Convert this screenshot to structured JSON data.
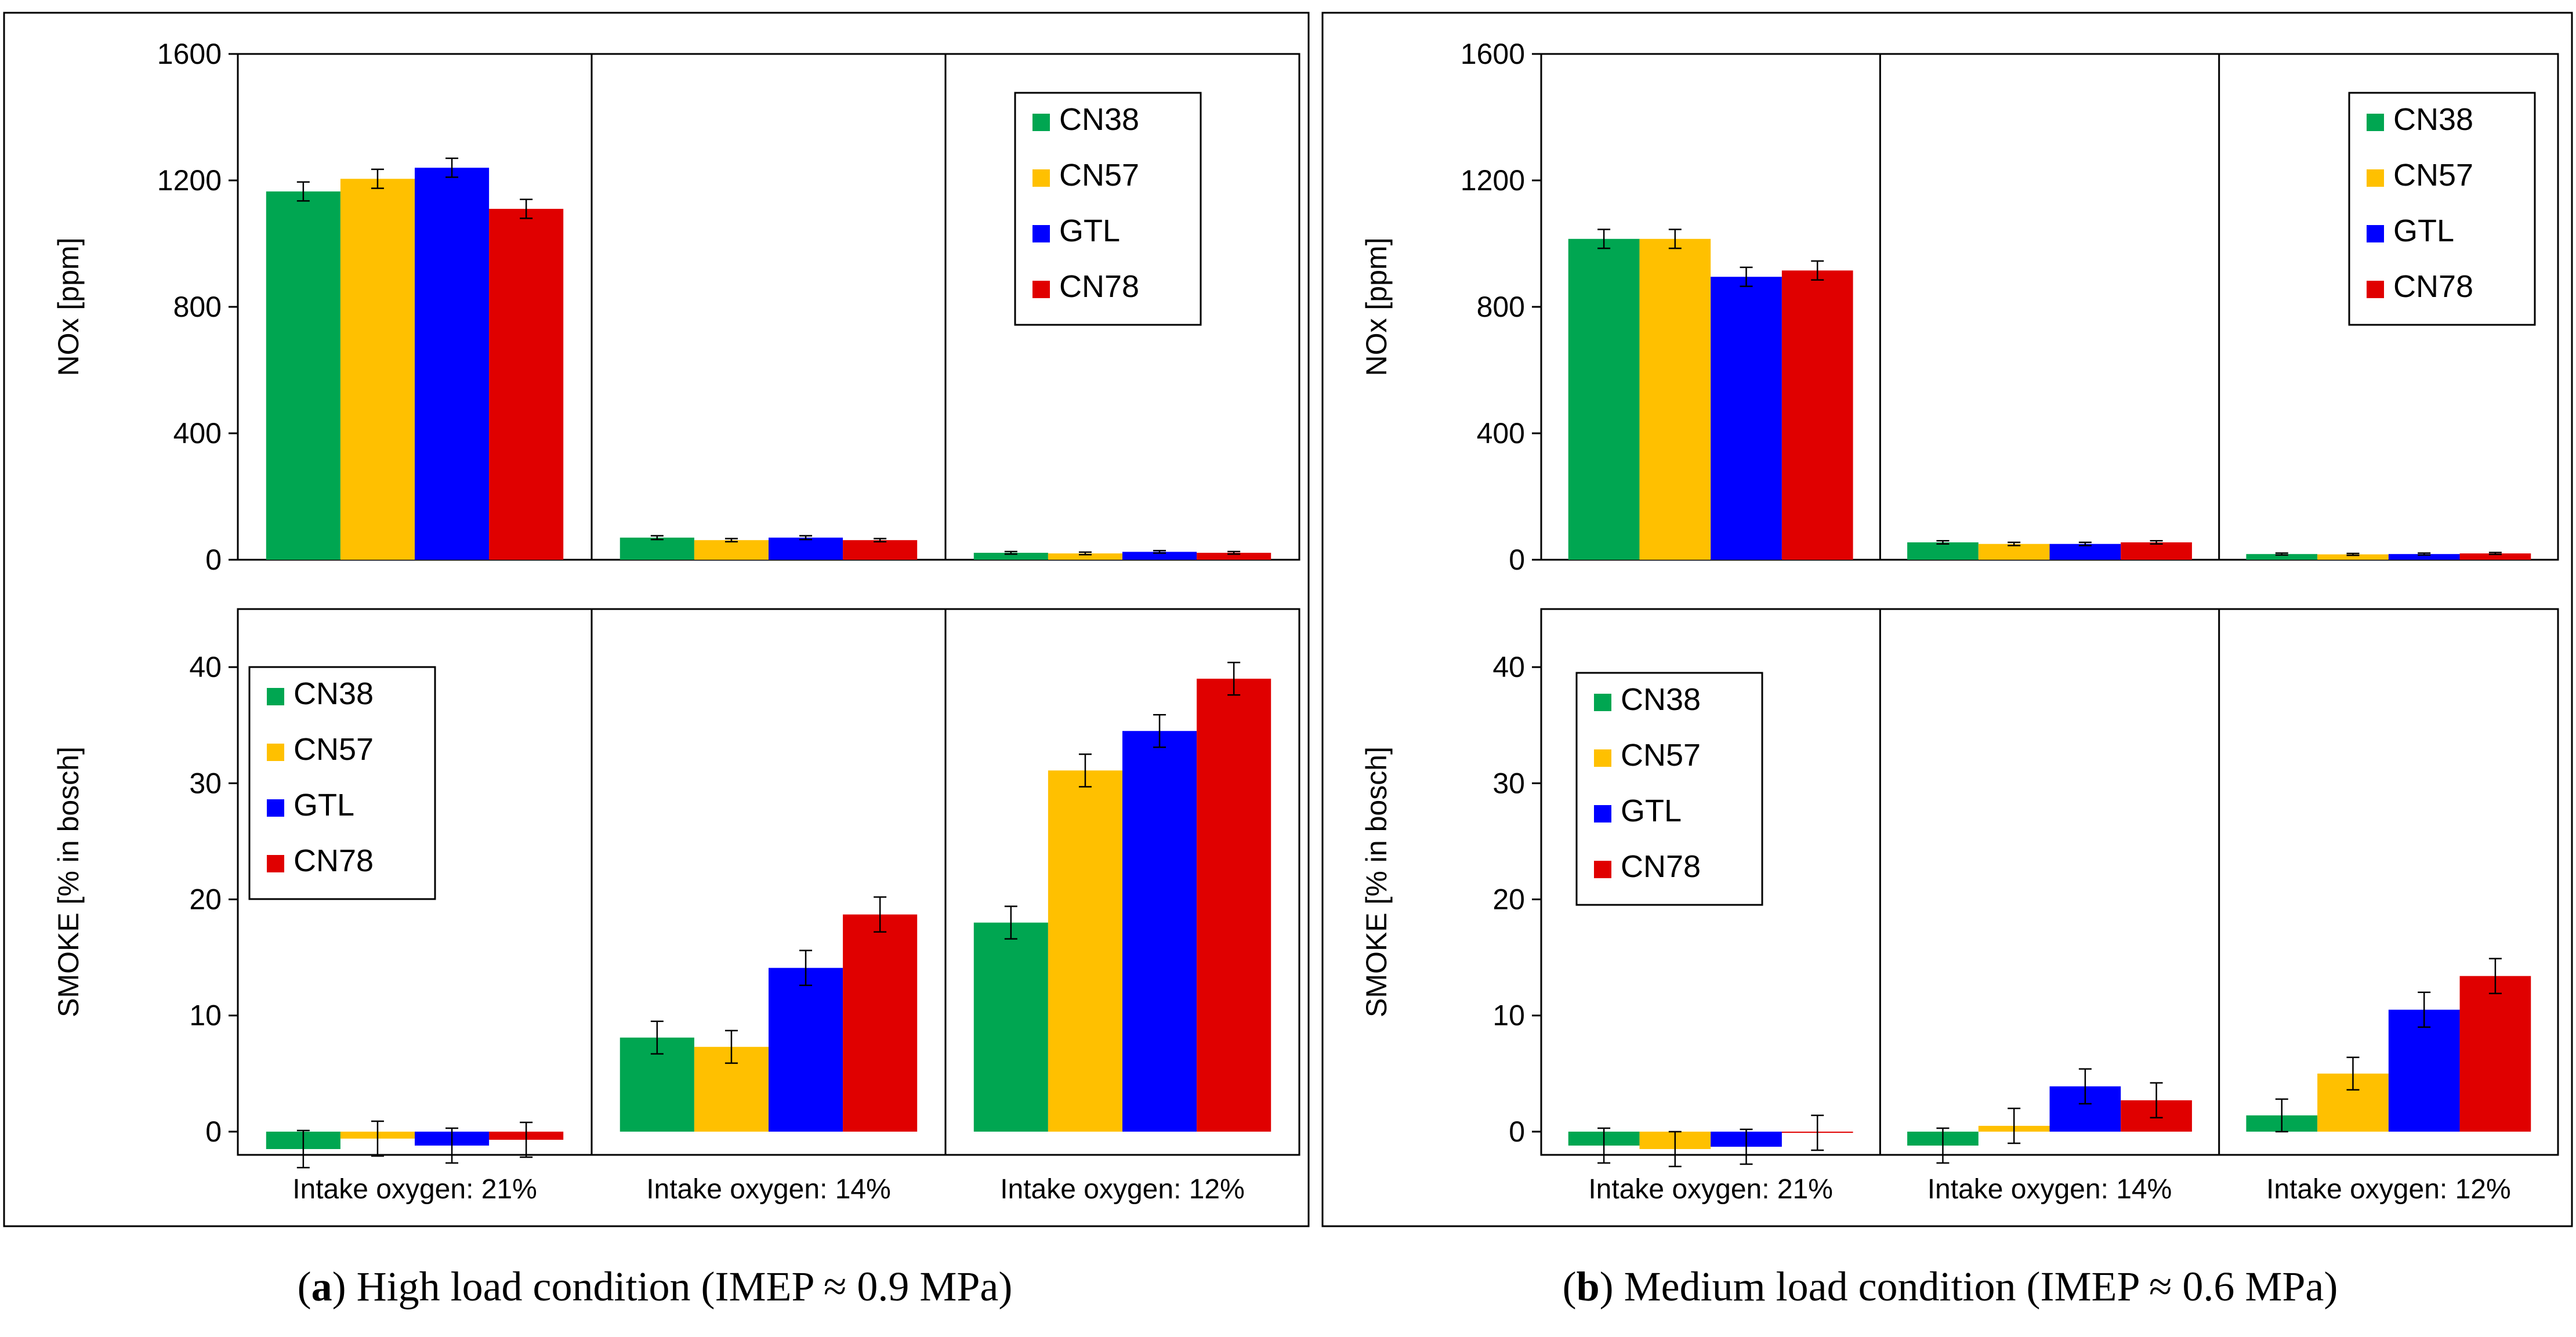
{
  "series_colors": {
    "CN38": "#00a651",
    "CN57": "#ffc000",
    "GTL": "#0000ff",
    "CN78": "#e00000"
  },
  "chart_data": [
    {
      "type": "bar",
      "panel": "a",
      "caption_letter": "a",
      "caption_text": ") High load condition (IMEP ≈ 0.9 MPa)",
      "categories": [
        "Intake oxygen: 21%",
        "Intake oxygen: 14%",
        "Intake oxygen: 12%"
      ],
      "top": {
        "ylabel": "NOx [ppm]",
        "ylim": [
          0,
          1600
        ],
        "yticks": [
          0,
          400,
          800,
          1200,
          1600
        ],
        "legend_position": "top-right",
        "series": [
          {
            "name": "CN38",
            "values": [
              1165,
              70,
              22
            ],
            "errors": [
              30,
              6,
              4
            ]
          },
          {
            "name": "CN57",
            "values": [
              1205,
              62,
              20
            ],
            "errors": [
              30,
              5,
              4
            ]
          },
          {
            "name": "GTL",
            "values": [
              1240,
              70,
              25
            ],
            "errors": [
              30,
              6,
              4
            ]
          },
          {
            "name": "CN78",
            "values": [
              1110,
              62,
              22
            ],
            "errors": [
              30,
              5,
              4
            ]
          }
        ]
      },
      "bottom": {
        "ylabel": "SMOKE [% in bosch]",
        "ylim": [
          -2,
          45
        ],
        "yticks": [
          0,
          10,
          20,
          30,
          40
        ],
        "legend_position": "top-left",
        "series": [
          {
            "name": "CN38",
            "values": [
              -1.5,
              8.1,
              18.0
            ],
            "errors": [
              1.6,
              1.4,
              1.4
            ]
          },
          {
            "name": "CN57",
            "values": [
              -0.6,
              7.3,
              31.1
            ],
            "errors": [
              1.5,
              1.4,
              1.4
            ]
          },
          {
            "name": "GTL",
            "values": [
              -1.2,
              14.1,
              34.5
            ],
            "errors": [
              1.5,
              1.5,
              1.4
            ]
          },
          {
            "name": "CN78",
            "values": [
              -0.7,
              18.7,
              39.0
            ],
            "errors": [
              1.5,
              1.5,
              1.4
            ]
          }
        ]
      }
    },
    {
      "type": "bar",
      "panel": "b",
      "caption_letter": "b",
      "caption_text": ") Medium load condition (IMEP ≈ 0.6 MPa)",
      "categories": [
        "Intake oxygen: 21%",
        "Intake oxygen: 14%",
        "Intake oxygen: 12%"
      ],
      "top": {
        "ylabel": "NOx [ppm]",
        "ylim": [
          0,
          1600
        ],
        "yticks": [
          0,
          400,
          800,
          1200,
          1600
        ],
        "legend_position": "top-right",
        "series": [
          {
            "name": "CN38",
            "values": [
              1015,
              55,
              18
            ],
            "errors": [
              30,
              5,
              3
            ]
          },
          {
            "name": "CN57",
            "values": [
              1015,
              50,
              17
            ],
            "errors": [
              30,
              5,
              3
            ]
          },
          {
            "name": "GTL",
            "values": [
              895,
              50,
              18
            ],
            "errors": [
              30,
              5,
              3
            ]
          },
          {
            "name": "CN78",
            "values": [
              915,
              55,
              20
            ],
            "errors": [
              30,
              5,
              3
            ]
          }
        ]
      },
      "bottom": {
        "ylabel": "SMOKE [% in bosch]",
        "ylim": [
          -2,
          45
        ],
        "yticks": [
          0,
          10,
          20,
          30,
          40
        ],
        "legend_position": "top-left",
        "series": [
          {
            "name": "CN38",
            "values": [
              -1.2,
              -1.2,
              1.4
            ],
            "errors": [
              1.5,
              1.5,
              1.4
            ]
          },
          {
            "name": "CN57",
            "values": [
              -1.5,
              0.5,
              5.0
            ],
            "errors": [
              1.5,
              1.5,
              1.4
            ]
          },
          {
            "name": "GTL",
            "values": [
              -1.3,
              3.9,
              10.5
            ],
            "errors": [
              1.5,
              1.5,
              1.5
            ]
          },
          {
            "name": "CN78",
            "values": [
              -0.1,
              2.7,
              13.4
            ],
            "errors": [
              1.5,
              1.5,
              1.5
            ]
          }
        ]
      }
    }
  ]
}
